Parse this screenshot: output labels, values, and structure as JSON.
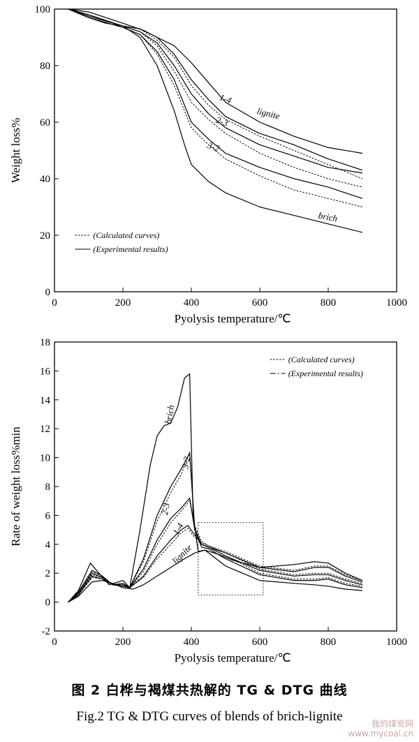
{
  "chart_data": [
    {
      "type": "line",
      "title": "",
      "xlabel": "Pyolysis temperature/℃",
      "ylabel": "Weight loss%",
      "xlim": [
        0,
        1000
      ],
      "ylim": [
        0,
        100
      ],
      "xticks": [
        0,
        200,
        400,
        600,
        800,
        1000
      ],
      "yticks": [
        0,
        20,
        40,
        60,
        80,
        100
      ],
      "grid": false,
      "legend": {
        "position": "bottom-left",
        "entries": [
          {
            "style": "dotted",
            "label": "(Calculated curves)"
          },
          {
            "style": "solid",
            "label": "(Experimental results)"
          }
        ]
      },
      "annotations": [
        "lignite",
        "1-4",
        "2-3",
        "3-2",
        "brich"
      ],
      "series": [
        {
          "name": "lignite",
          "style": "solid",
          "x": [
            40,
            100,
            200,
            260,
            300,
            350,
            400,
            450,
            500,
            600,
            700,
            800,
            900
          ],
          "y": [
            100,
            99,
            95,
            92.5,
            90,
            87,
            81,
            74,
            67,
            60,
            55,
            51,
            49
          ]
        },
        {
          "name": "1-4",
          "style": "solid",
          "x": [
            40,
            100,
            200,
            250,
            300,
            350,
            400,
            450,
            500,
            600,
            700,
            800,
            900
          ],
          "y": [
            100,
            98,
            94,
            93,
            90,
            84,
            75,
            68,
            62,
            56,
            52,
            47,
            43
          ]
        },
        {
          "name": "1-4",
          "style": "dotted",
          "x": [
            40,
            100,
            200,
            250,
            300,
            350,
            400,
            450,
            500,
            600,
            700,
            800,
            900
          ],
          "y": [
            100,
            98,
            94,
            93,
            89,
            83,
            73,
            66,
            61,
            55,
            50,
            45,
            40
          ]
        },
        {
          "name": "2-3",
          "style": "solid",
          "x": [
            40,
            100,
            200,
            250,
            300,
            350,
            400,
            450,
            500,
            600,
            700,
            800,
            900
          ],
          "y": [
            100,
            97.5,
            94,
            92,
            88,
            80,
            70,
            63,
            58,
            52,
            48,
            44,
            42
          ]
        },
        {
          "name": "2-3",
          "style": "dotted",
          "x": [
            40,
            100,
            200,
            250,
            300,
            350,
            400,
            450,
            500,
            600,
            700,
            800,
            900
          ],
          "y": [
            100,
            97.5,
            94,
            92,
            87,
            78,
            67,
            61,
            56,
            49,
            44,
            40,
            37
          ]
        },
        {
          "name": "3-2",
          "style": "solid",
          "x": [
            40,
            100,
            200,
            250,
            300,
            350,
            400,
            450,
            500,
            600,
            700,
            800,
            900
          ],
          "y": [
            100,
            97,
            93.5,
            91,
            85,
            75,
            60,
            54,
            49,
            44,
            40,
            37,
            33
          ]
        },
        {
          "name": "3-2",
          "style": "dotted",
          "x": [
            40,
            100,
            200,
            250,
            300,
            350,
            400,
            450,
            500,
            600,
            700,
            800,
            900
          ],
          "y": [
            100,
            97,
            93.5,
            91,
            84,
            73,
            58,
            52,
            47,
            41,
            36,
            33,
            30
          ]
        },
        {
          "name": "brich",
          "style": "solid",
          "x": [
            40,
            100,
            150,
            200,
            250,
            300,
            350,
            380,
            400,
            450,
            500,
            600,
            700,
            800,
            900
          ],
          "y": [
            100,
            97,
            95,
            94,
            90,
            80,
            64,
            52,
            45,
            39,
            35,
            30,
            27,
            24,
            21
          ]
        }
      ]
    },
    {
      "type": "line",
      "title": "",
      "xlabel": "Pyolysis temperature/℃",
      "ylabel": "Rate of weight loss%min",
      "xlim": [
        0,
        1000
      ],
      "ylim": [
        -2,
        18
      ],
      "xticks": [
        0,
        200,
        400,
        600,
        800,
        1000
      ],
      "yticks": [
        -2,
        0,
        2,
        4,
        6,
        8,
        10,
        12,
        14,
        16,
        18
      ],
      "grid": false,
      "legend": {
        "position": "top-right",
        "entries": [
          {
            "style": "dotted",
            "label": "(Calculated curves)"
          },
          {
            "style": "dash-dot",
            "label": "(Experimental results)"
          }
        ]
      },
      "annotations": [
        "brich",
        "3-2",
        "2-3",
        "1-4",
        "lignite"
      ],
      "highlight_box": {
        "x": [
          420,
          610
        ],
        "y": [
          0.5,
          5.5
        ]
      },
      "series": [
        {
          "name": "brich",
          "style": "solid",
          "x": [
            40,
            70,
            105,
            130,
            160,
            200,
            220,
            250,
            280,
            300,
            320,
            340,
            360,
            380,
            395,
            405,
            420,
            440,
            500,
            600,
            700,
            760,
            800,
            850,
            900
          ],
          "y": [
            0,
            0.8,
            2.7,
            2.0,
            1.2,
            1.5,
            1.0,
            5.0,
            9.5,
            11.5,
            12.2,
            12.4,
            13.5,
            15.5,
            15.8,
            6.0,
            3.5,
            3.6,
            2.5,
            1.5,
            1.3,
            1.2,
            1.1,
            0.9,
            0.8
          ]
        },
        {
          "name": "3-2",
          "style": "solid",
          "x": [
            40,
            70,
            110,
            140,
            170,
            200,
            220,
            260,
            300,
            340,
            370,
            395,
            410,
            430,
            450,
            500,
            600,
            700,
            760,
            800,
            850,
            900
          ],
          "y": [
            0,
            0.7,
            2.2,
            1.8,
            1.2,
            1.3,
            1.0,
            3.0,
            6.0,
            8.0,
            9.2,
            10.3,
            5.0,
            3.8,
            3.7,
            3.0,
            1.9,
            1.5,
            1.5,
            1.6,
            1.2,
            1.0
          ]
        },
        {
          "name": "3-2",
          "style": "dotted",
          "x": [
            40,
            70,
            110,
            140,
            170,
            200,
            220,
            260,
            300,
            340,
            370,
            395,
            410,
            430,
            450,
            500,
            600,
            700,
            760,
            800,
            850,
            900
          ],
          "y": [
            0,
            0.7,
            2.1,
            1.8,
            1.2,
            1.3,
            1.0,
            2.8,
            5.6,
            7.6,
            8.8,
            10.4,
            5.2,
            4.0,
            3.8,
            3.2,
            2.0,
            1.6,
            1.6,
            1.7,
            1.3,
            1.1
          ]
        },
        {
          "name": "2-3",
          "style": "solid",
          "x": [
            40,
            70,
            110,
            140,
            170,
            200,
            220,
            260,
            300,
            340,
            370,
            395,
            410,
            430,
            450,
            500,
            600,
            700,
            760,
            800,
            850,
            900
          ],
          "y": [
            0,
            0.6,
            2.0,
            1.7,
            1.2,
            1.2,
            1.0,
            2.3,
            4.3,
            5.8,
            6.5,
            7.2,
            5.0,
            4.0,
            3.8,
            3.2,
            2.2,
            1.8,
            1.9,
            1.9,
            1.5,
            1.2
          ]
        },
        {
          "name": "2-3",
          "style": "dotted",
          "x": [
            40,
            70,
            110,
            140,
            170,
            200,
            220,
            260,
            300,
            340,
            370,
            395,
            410,
            430,
            450,
            500,
            600,
            700,
            760,
            800,
            850,
            900
          ],
          "y": [
            0,
            0.6,
            1.9,
            1.7,
            1.2,
            1.2,
            1.0,
            2.1,
            4.0,
            5.5,
            6.3,
            7.0,
            5.3,
            4.2,
            3.9,
            3.4,
            2.3,
            1.9,
            2.0,
            2.0,
            1.6,
            1.3
          ]
        },
        {
          "name": "1-4",
          "style": "solid",
          "x": [
            40,
            70,
            110,
            140,
            170,
            200,
            220,
            260,
            300,
            340,
            370,
            390,
            405,
            430,
            450,
            500,
            600,
            700,
            760,
            800,
            850,
            900
          ],
          "y": [
            0,
            0.5,
            1.8,
            1.6,
            1.2,
            1.1,
            1.0,
            1.8,
            3.2,
            4.3,
            5.0,
            5.3,
            4.8,
            4.0,
            3.8,
            3.4,
            2.4,
            2.1,
            2.4,
            2.4,
            1.8,
            1.4
          ]
        },
        {
          "name": "1-4",
          "style": "dotted",
          "x": [
            40,
            70,
            110,
            140,
            170,
            200,
            220,
            260,
            300,
            340,
            370,
            390,
            405,
            430,
            450,
            500,
            600,
            700,
            760,
            800,
            850,
            900
          ],
          "y": [
            0,
            0.5,
            1.7,
            1.6,
            1.2,
            1.1,
            1.0,
            1.7,
            3.0,
            4.0,
            4.8,
            5.1,
            4.6,
            4.1,
            3.9,
            3.5,
            2.5,
            2.2,
            2.5,
            2.5,
            1.9,
            1.5
          ]
        },
        {
          "name": "lignite",
          "style": "solid",
          "x": [
            40,
            70,
            110,
            140,
            170,
            200,
            230,
            260,
            300,
            340,
            380,
            410,
            440,
            480,
            520,
            600,
            700,
            760,
            800,
            850,
            900
          ],
          "y": [
            0,
            0.4,
            1.4,
            1.5,
            1.3,
            1.0,
            0.9,
            1.2,
            1.8,
            2.4,
            3.0,
            3.4,
            3.6,
            3.3,
            2.9,
            2.4,
            2.6,
            2.8,
            2.7,
            2.0,
            1.5
          ]
        }
      ]
    }
  ],
  "caption": {
    "zh": "图 2   白桦与褐煤共热解的 TG & DTG 曲线",
    "en": "Fig.2   TG & DTG curves of blends of brich-lignite"
  },
  "watermark": {
    "line1": "我的煤炭网",
    "line2": "www.mycoal.cn"
  }
}
